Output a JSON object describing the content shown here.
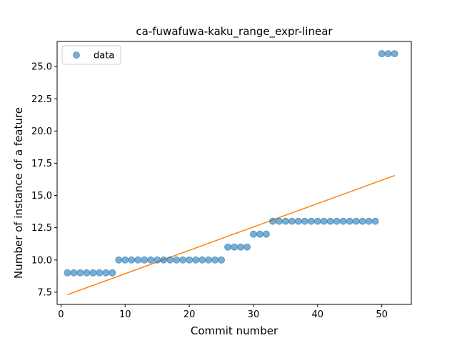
{
  "chart_data": {
    "type": "scatter",
    "title": "ca-fuwafuwa-kaku_range_expr-linear",
    "xlabel": "Commit number",
    "ylabel": "Number of instance of a feature",
    "xlim": [
      -0.6,
      54.6
    ],
    "ylim": [
      6.55,
      26.95
    ],
    "xticks": [
      0,
      10,
      20,
      30,
      40,
      50
    ],
    "yticks": [
      7.5,
      10.0,
      12.5,
      15.0,
      17.5,
      20.0,
      22.5,
      25.0
    ],
    "ytick_labels": [
      "7.5",
      "10.0",
      "12.5",
      "15.0",
      "17.5",
      "20.0",
      "22.5",
      "25.0"
    ],
    "legend": {
      "placement": "top-left",
      "entries": [
        "data"
      ]
    },
    "grid": false,
    "series": [
      {
        "name": "data",
        "kind": "scatter",
        "color": "#1f77b4",
        "x": [
          1,
          2,
          3,
          4,
          5,
          6,
          7,
          8,
          9,
          10,
          11,
          12,
          13,
          14,
          15,
          16,
          17,
          18,
          19,
          20,
          21,
          22,
          23,
          24,
          25,
          26,
          27,
          28,
          29,
          30,
          31,
          32,
          33,
          34,
          35,
          36,
          37,
          38,
          39,
          40,
          41,
          42,
          43,
          44,
          45,
          46,
          47,
          48,
          49,
          50,
          51,
          52
        ],
        "y": [
          9,
          9,
          9,
          9,
          9,
          9,
          9,
          9,
          10,
          10,
          10,
          10,
          10,
          10,
          10,
          10,
          10,
          10,
          10,
          10,
          10,
          10,
          10,
          10,
          10,
          11,
          11,
          11,
          11,
          12,
          12,
          12,
          13,
          13,
          13,
          13,
          13,
          13,
          13,
          13,
          13,
          13,
          13,
          13,
          13,
          13,
          13,
          13,
          13,
          26,
          26,
          26
        ]
      },
      {
        "kind": "line",
        "color": "#ff7f0e",
        "x": [
          1,
          52
        ],
        "y": [
          7.3,
          16.55
        ]
      }
    ]
  }
}
